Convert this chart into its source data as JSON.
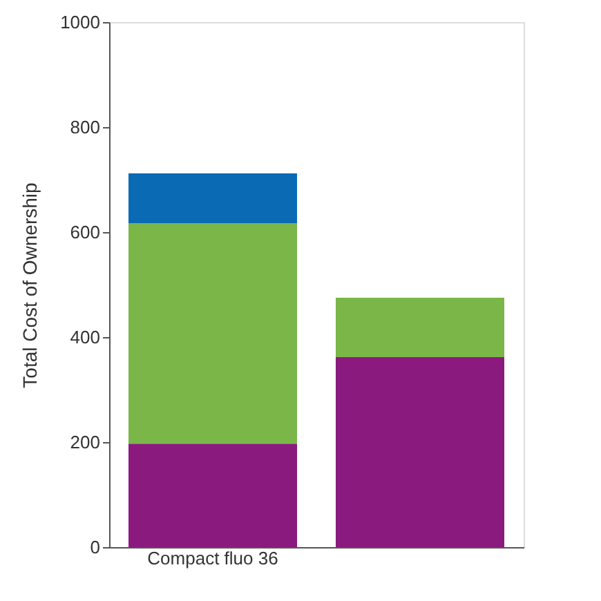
{
  "chart_data": {
    "type": "bar",
    "stacked": true,
    "ylabel": "Total Cost of Ownership",
    "categories": [
      "Compact fluo 36",
      null
    ],
    "series": [
      {
        "color": "#8b1a7e",
        "values": [
          197,
          362
        ]
      },
      {
        "color": "#7ab648",
        "values": [
          420,
          113
        ]
      },
      {
        "color": "#0a6ab4",
        "values": [
          95,
          null
        ]
      }
    ],
    "ylim": [
      0,
      1000
    ],
    "yticks": [
      0,
      200,
      400,
      600,
      800,
      1000
    ],
    "grid": false,
    "legend": false
  }
}
